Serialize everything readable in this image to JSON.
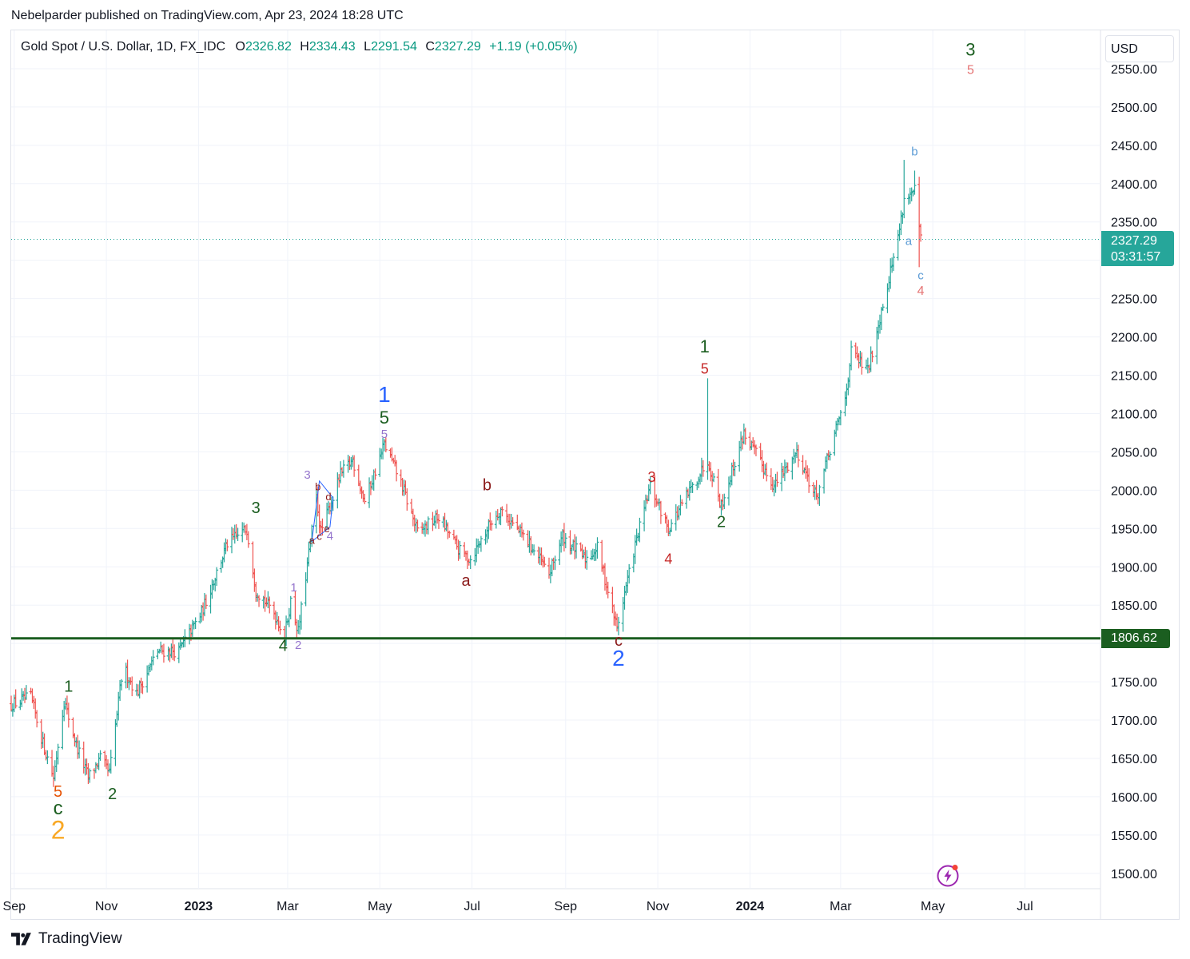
{
  "header": {
    "attribution": "Nebelparder published on TradingView.com, Apr 23, 2024 18:28 UTC"
  },
  "legend": {
    "symbol": "Gold Spot / U.S. Dollar, 1D, FX_IDC",
    "o_label": "O",
    "o_value": "2326.82",
    "h_label": "H",
    "h_value": "2334.43",
    "l_label": "L",
    "l_value": "2291.54",
    "c_label": "C",
    "c_value": "2327.29",
    "change": "+1.19 (+0.05%)"
  },
  "axis": {
    "currency": "USD"
  },
  "last_price": {
    "value": "2327.29",
    "countdown": "03:31:57"
  },
  "support_level": {
    "value": "1806.62"
  },
  "footer": {
    "brand": "TradingView"
  },
  "colors": {
    "up": "#26a69a",
    "down": "#ef5350",
    "support": "#1b5e20",
    "grid": "#f0f3fa",
    "dark_green": "#1b5e20",
    "dark_red": "#8b1a1a",
    "blue": "#2962ff",
    "purple": "#9575cd",
    "orange": "#f9a825",
    "light_blue": "#5b9bd5",
    "pink": "#e57373"
  },
  "chart_data": {
    "type": "ohlc-bar",
    "title": "Gold Spot / U.S. Dollar, 1D, FX_IDC",
    "ylim": [
      1480,
      2600
    ],
    "y_ticks": [
      "1500.00",
      "1550.00",
      "1600.00",
      "1650.00",
      "1700.00",
      "1750.00",
      "1800.00",
      "1850.00",
      "1900.00",
      "1950.00",
      "2000.00",
      "2050.00",
      "2100.00",
      "2150.00",
      "2200.00",
      "2250.00",
      "2300.00",
      "2350.00",
      "2400.00",
      "2450.00",
      "2500.00",
      "2550.00"
    ],
    "x_ticks": [
      {
        "label": "Sep",
        "date": "2022-09-01",
        "bold": false
      },
      {
        "label": "Nov",
        "date": "2022-11-01",
        "bold": false
      },
      {
        "label": "2023",
        "date": "2023-01-01",
        "bold": true
      },
      {
        "label": "Mar",
        "date": "2023-03-01",
        "bold": false
      },
      {
        "label": "May",
        "date": "2023-05-01",
        "bold": false
      },
      {
        "label": "Jul",
        "date": "2023-07-01",
        "bold": false
      },
      {
        "label": "Sep",
        "date": "2023-09-01",
        "bold": false
      },
      {
        "label": "Nov",
        "date": "2023-11-01",
        "bold": false
      },
      {
        "label": "2024",
        "date": "2024-01-01",
        "bold": true
      },
      {
        "label": "Mar",
        "date": "2024-03-01",
        "bold": false
      },
      {
        "label": "May",
        "date": "2024-05-01",
        "bold": false
      },
      {
        "label": "Jul",
        "date": "2024-07-01",
        "bold": false
      }
    ],
    "x_range": [
      "2022-08-30",
      "2024-08-20"
    ],
    "price_path": [
      [
        "2022-08-30",
        1720
      ],
      [
        "2022-09-12",
        1730
      ],
      [
        "2022-09-20",
        1670
      ],
      [
        "2022-09-27",
        1625
      ],
      [
        "2022-10-04",
        1725
      ],
      [
        "2022-10-12",
        1668
      ],
      [
        "2022-10-20",
        1625
      ],
      [
        "2022-10-28",
        1650
      ],
      [
        "2022-11-03",
        1630
      ],
      [
        "2022-11-12",
        1770
      ],
      [
        "2022-11-21",
        1735
      ],
      [
        "2022-12-05",
        1790
      ],
      [
        "2022-12-19",
        1790
      ],
      [
        "2023-01-03",
        1840
      ],
      [
        "2023-01-20",
        1930
      ],
      [
        "2023-02-02",
        1950
      ],
      [
        "2023-02-08",
        1870
      ],
      [
        "2023-02-20",
        1840
      ],
      [
        "2023-02-27",
        1810
      ],
      [
        "2023-03-03",
        1855
      ],
      [
        "2023-03-08",
        1815
      ],
      [
        "2023-03-20",
        1990
      ],
      [
        "2023-03-23",
        1945
      ],
      [
        "2023-04-05",
        2020
      ],
      [
        "2023-04-13",
        2040
      ],
      [
        "2023-04-21",
        1985
      ],
      [
        "2023-05-04",
        2060
      ],
      [
        "2023-05-15",
        2010
      ],
      [
        "2023-05-26",
        1945
      ],
      [
        "2023-06-09",
        1965
      ],
      [
        "2023-06-23",
        1920
      ],
      [
        "2023-06-30",
        1910
      ],
      [
        "2023-07-14",
        1960
      ],
      [
        "2023-07-20",
        1975
      ],
      [
        "2023-08-08",
        1930
      ],
      [
        "2023-08-21",
        1890
      ],
      [
        "2023-08-30",
        1940
      ],
      [
        "2023-09-14",
        1910
      ],
      [
        "2023-09-22",
        1925
      ],
      [
        "2023-10-05",
        1820
      ],
      [
        "2023-10-16",
        1920
      ],
      [
        "2023-10-27",
        2005
      ],
      [
        "2023-11-08",
        1950
      ],
      [
        "2023-11-27",
        2015
      ],
      [
        "2023-12-04",
        2040
      ],
      [
        "2023-12-13",
        1980
      ],
      [
        "2023-12-28",
        2075
      ],
      [
        "2024-01-17",
        2005
      ],
      [
        "2024-02-01",
        2050
      ],
      [
        "2024-02-14",
        1990
      ],
      [
        "2024-03-04",
        2120
      ],
      [
        "2024-03-08",
        2180
      ],
      [
        "2024-03-19",
        2155
      ],
      [
        "2024-03-28",
        2235
      ],
      [
        "2024-04-08",
        2330
      ],
      [
        "2024-04-12",
        2380
      ],
      [
        "2024-04-19",
        2390
      ],
      [
        "2024-04-23",
        2327
      ]
    ],
    "spikes": [
      {
        "date": "2023-12-04",
        "high": 2146
      },
      {
        "date": "2024-04-12",
        "high": 2431
      },
      {
        "date": "2024-04-19",
        "high": 2417
      },
      {
        "date": "2024-04-22",
        "low": 2291
      }
    ],
    "horizontal_lines": [
      {
        "price": 1806.62,
        "style": "solid",
        "label": "1806.62"
      },
      {
        "price": 2327.29,
        "style": "dotted",
        "label": "2327.29"
      }
    ],
    "annotations": [
      {
        "text": "1",
        "date": "2022-10-07",
        "price": 1737,
        "color": "dark_green",
        "size": 20
      },
      {
        "text": "5",
        "date": "2022-09-30",
        "price": 1600,
        "color": "#e65100",
        "size": 20
      },
      {
        "text": "c",
        "date": "2022-09-30",
        "price": 1577,
        "color": "dark_green",
        "size": 24
      },
      {
        "text": "2",
        "date": "2022-09-30",
        "price": 1545,
        "color": "orange",
        "size": 32
      },
      {
        "text": "2",
        "date": "2022-11-05",
        "price": 1597,
        "color": "dark_green",
        "size": 20
      },
      {
        "text": "3",
        "date": "2023-02-08",
        "price": 1970,
        "color": "dark_green",
        "size": 20
      },
      {
        "text": "4",
        "date": "2023-02-26",
        "price": 1790,
        "color": "dark_green",
        "size": 20
      },
      {
        "text": "1",
        "date": "2023-03-05",
        "price": 1868,
        "color": "purple",
        "size": 15
      },
      {
        "text": "2",
        "date": "2023-03-08",
        "price": 1793,
        "color": "purple",
        "size": 15
      },
      {
        "text": "3",
        "date": "2023-03-14",
        "price": 2015,
        "color": "purple",
        "size": 15
      },
      {
        "text": "b",
        "date": "2023-03-21",
        "price": 2000,
        "color": "dark_red",
        "size": 13
      },
      {
        "text": "d",
        "date": "2023-03-28",
        "price": 1987,
        "color": "dark_red",
        "size": 13
      },
      {
        "text": "a",
        "date": "2023-03-17",
        "price": 1930,
        "color": "dark_red",
        "size": 13
      },
      {
        "text": "c",
        "date": "2023-03-22",
        "price": 1935,
        "color": "dark_red",
        "size": 13
      },
      {
        "text": "e",
        "date": "2023-03-27",
        "price": 1945,
        "color": "dark_red",
        "size": 13
      },
      {
        "text": "4",
        "date": "2023-03-29",
        "price": 1935,
        "color": "purple",
        "size": 15
      },
      {
        "text": "1",
        "date": "2023-05-04",
        "price": 2115,
        "color": "blue",
        "size": 28
      },
      {
        "text": "5",
        "date": "2023-05-04",
        "price": 2087,
        "color": "dark_green",
        "size": 22
      },
      {
        "text": "5",
        "date": "2023-05-04",
        "price": 2068,
        "color": "purple",
        "size": 15
      },
      {
        "text": "b",
        "date": "2023-07-11",
        "price": 2000,
        "color": "dark_red",
        "size": 20
      },
      {
        "text": "a",
        "date": "2023-06-27",
        "price": 1875,
        "color": "dark_red",
        "size": 20
      },
      {
        "text": "c",
        "date": "2023-10-06",
        "price": 1797,
        "color": "dark_red",
        "size": 20
      },
      {
        "text": "2",
        "date": "2023-10-06",
        "price": 1771,
        "color": "blue",
        "size": 28
      },
      {
        "text": "3",
        "date": "2023-10-28",
        "price": 2011,
        "color": "#c62828",
        "size": 18
      },
      {
        "text": "4",
        "date": "2023-11-08",
        "price": 1904,
        "color": "#c62828",
        "size": 18
      },
      {
        "text": "1",
        "date": "2023-12-02",
        "price": 2180,
        "color": "dark_green",
        "size": 22
      },
      {
        "text": "5",
        "date": "2023-12-02",
        "price": 2152,
        "color": "#c62828",
        "size": 18
      },
      {
        "text": "2",
        "date": "2023-12-13",
        "price": 1952,
        "color": "dark_green",
        "size": 20
      },
      {
        "text": "b",
        "date": "2024-04-19",
        "price": 2437,
        "color": "light_blue",
        "size": 15
      },
      {
        "text": "a",
        "date": "2024-04-15",
        "price": 2320,
        "color": "light_blue",
        "size": 15
      },
      {
        "text": "c",
        "date": "2024-04-23",
        "price": 2275,
        "color": "light_blue",
        "size": 15
      },
      {
        "text": "4",
        "date": "2024-04-23",
        "price": 2255,
        "color": "pink",
        "size": 16
      },
      {
        "text": "3",
        "date": "2024-05-26",
        "price": 2567,
        "color": "dark_green",
        "size": 22
      },
      {
        "text": "5",
        "date": "2024-05-26",
        "price": 2543,
        "color": "pink",
        "size": 16
      }
    ],
    "lines": [
      {
        "color": "blue",
        "points": [
          [
            "2023-03-17",
            1933
          ],
          [
            "2023-03-22",
            2012
          ],
          [
            "2023-03-31",
            1990
          ],
          [
            "2023-03-29",
            1952
          ],
          [
            "2023-03-17",
            1933
          ]
        ]
      }
    ],
    "grid": true
  }
}
